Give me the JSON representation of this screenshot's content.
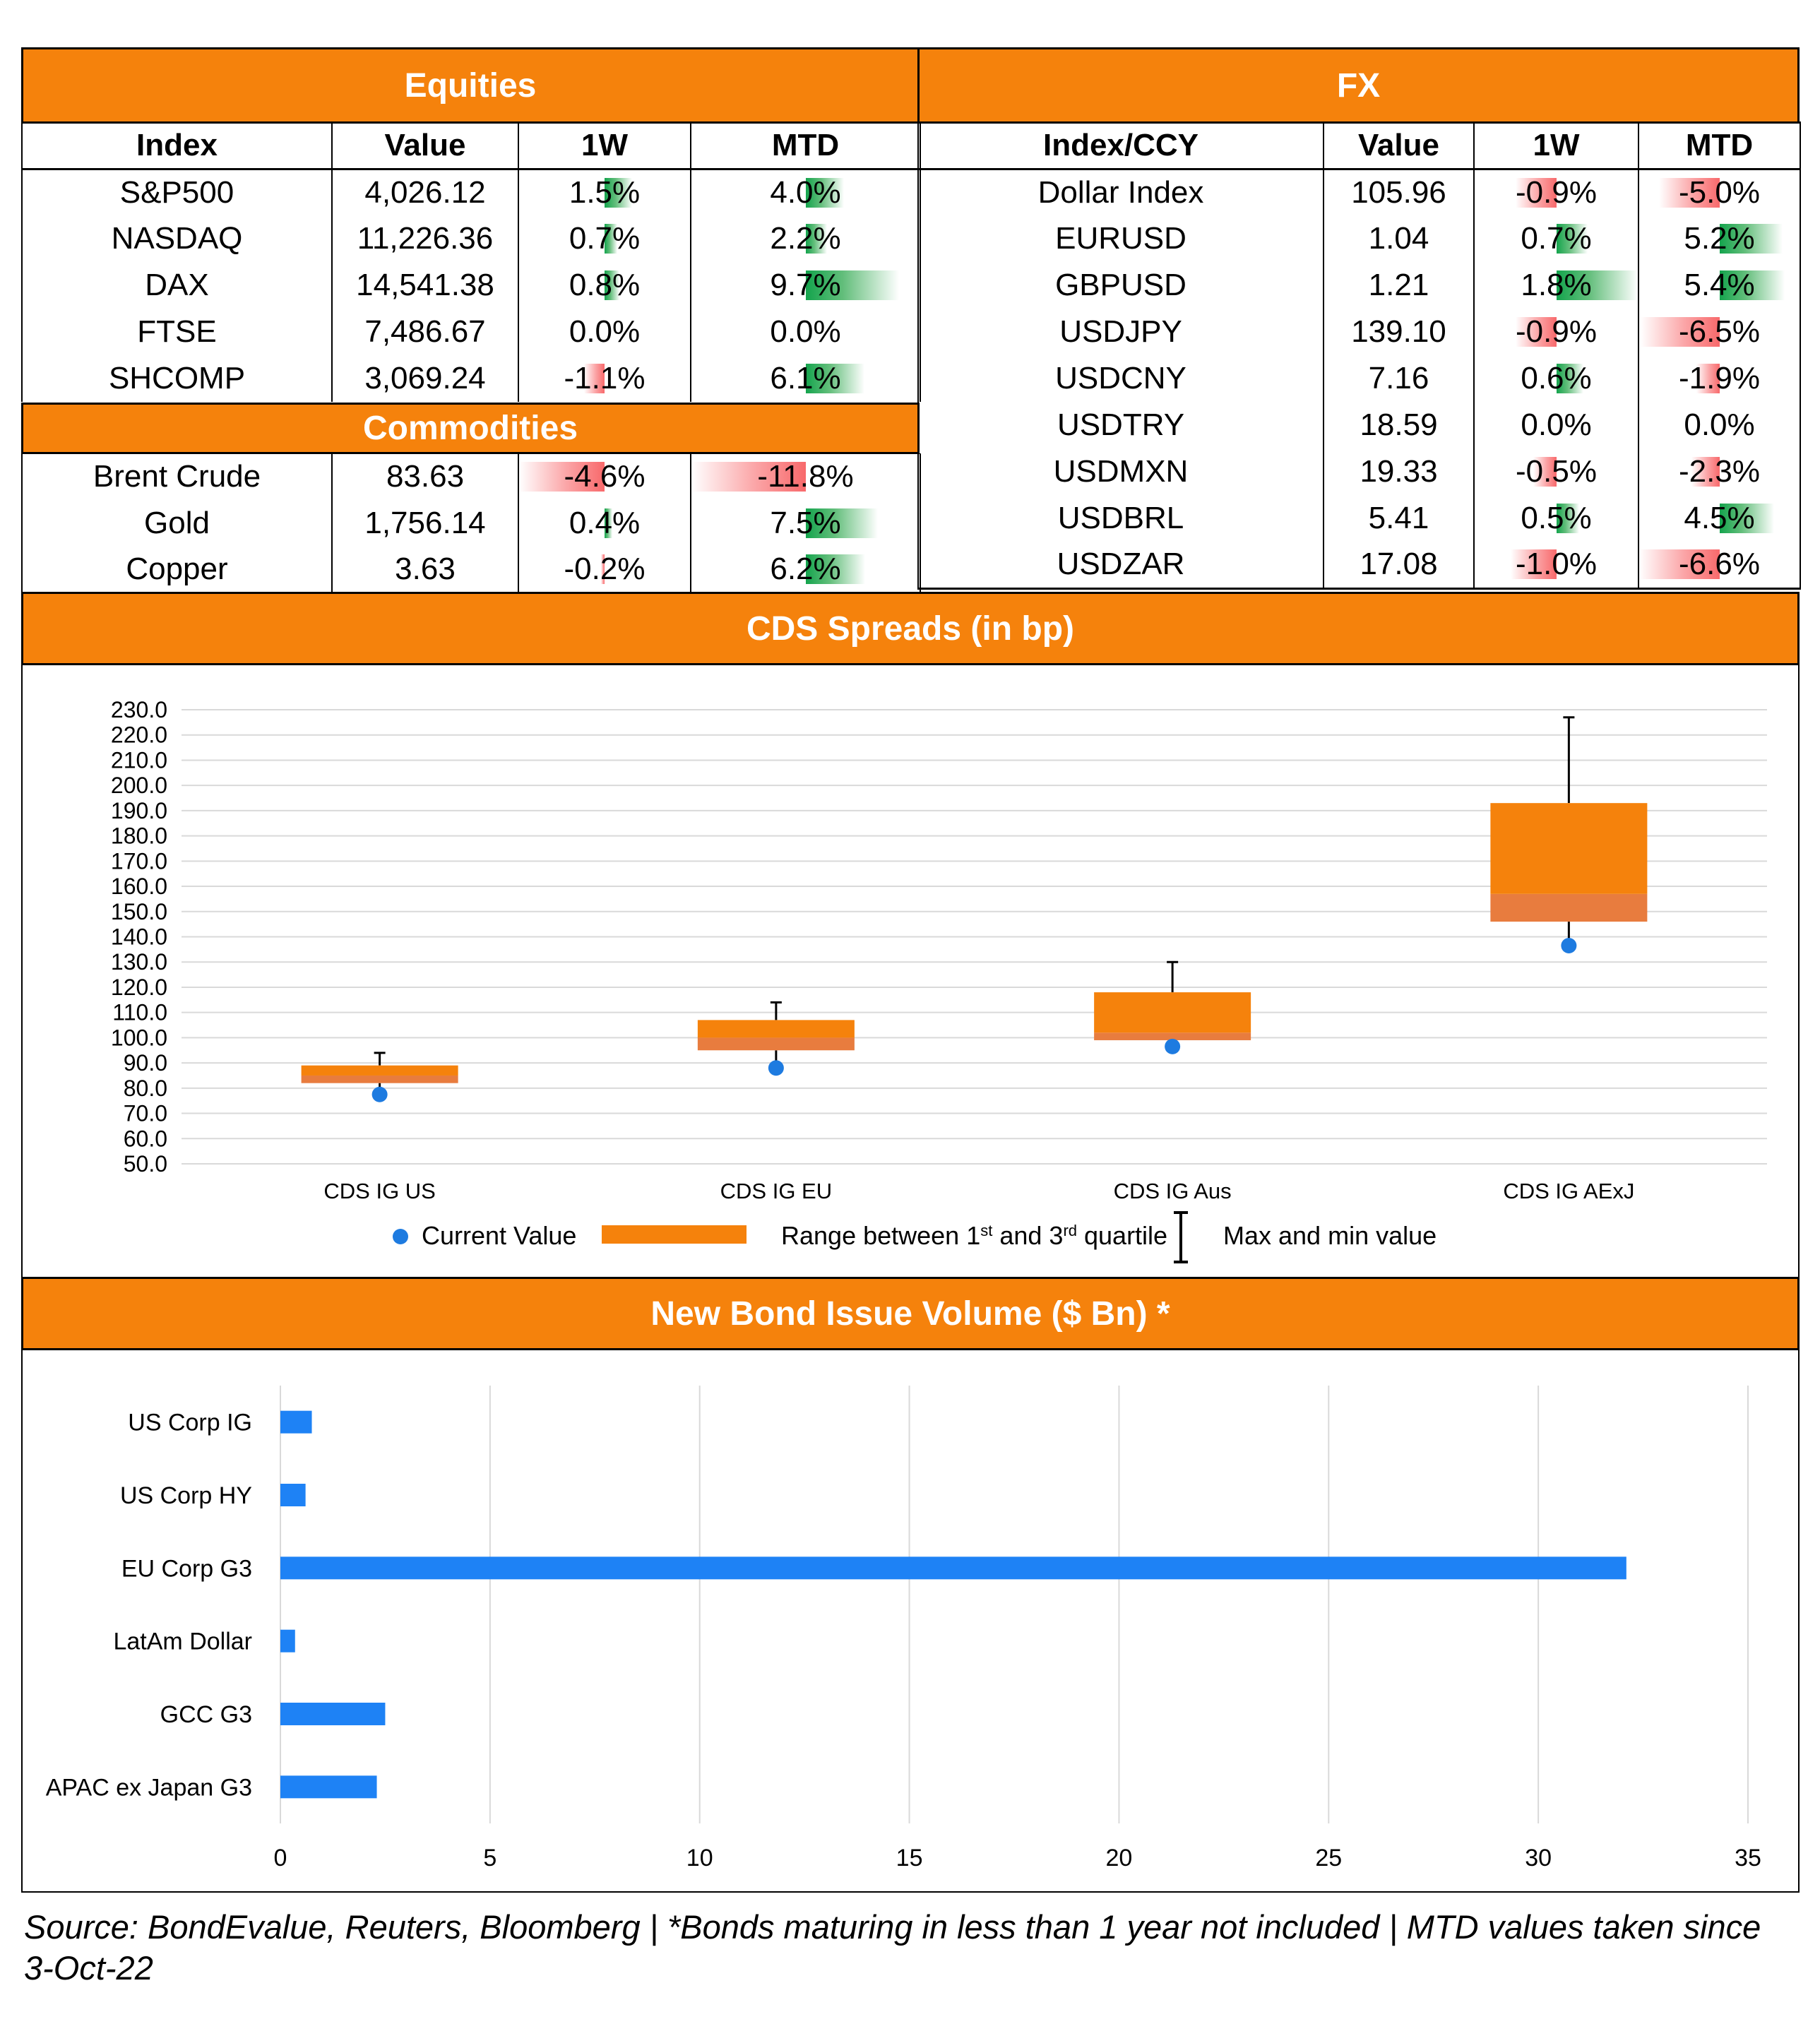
{
  "equities": {
    "title": "Equities",
    "headers": [
      "Index",
      "Value",
      "1W",
      "MTD"
    ],
    "rows": [
      {
        "index": "S&P500",
        "value": "4,026.12",
        "w1": "1.5%",
        "mtd": "4.0%",
        "w1_num": 1.5,
        "mtd_num": 4.0
      },
      {
        "index": "NASDAQ",
        "value": "11,226.36",
        "w1": "0.7%",
        "mtd": "2.2%",
        "w1_num": 0.7,
        "mtd_num": 2.2
      },
      {
        "index": "DAX",
        "value": "14,541.38",
        "w1": "0.8%",
        "mtd": "9.7%",
        "w1_num": 0.8,
        "mtd_num": 9.7
      },
      {
        "index": "FTSE",
        "value": "7,486.67",
        "w1": "0.0%",
        "mtd": "0.0%",
        "w1_num": 0.0,
        "mtd_num": 0.0
      },
      {
        "index": "SHCOMP",
        "value": "3,069.24",
        "w1": "-1.1%",
        "mtd": "6.1%",
        "w1_num": -1.1,
        "mtd_num": 6.1
      }
    ]
  },
  "commodities": {
    "title": "Commodities",
    "rows": [
      {
        "index": "Brent Crude",
        "value": "83.63",
        "w1": "-4.6%",
        "mtd": "-11.8%",
        "w1_num": -4.6,
        "mtd_num": -11.8
      },
      {
        "index": "Gold",
        "value": "1,756.14",
        "w1": "0.4%",
        "mtd": "7.5%",
        "w1_num": 0.4,
        "mtd_num": 7.5
      },
      {
        "index": "Copper",
        "value": "3.63",
        "w1": "-0.2%",
        "mtd": "6.2%",
        "w1_num": -0.2,
        "mtd_num": 6.2
      }
    ]
  },
  "fx": {
    "title": "FX",
    "headers": [
      "Index/CCY",
      "Value",
      "1W",
      "MTD"
    ],
    "rows": [
      {
        "index": "Dollar Index",
        "value": "105.96",
        "w1": "-0.9%",
        "mtd": "-5.0%",
        "w1_num": -0.9,
        "mtd_num": -5.0
      },
      {
        "index": "EURUSD",
        "value": "1.04",
        "w1": "0.7%",
        "mtd": "5.2%",
        "w1_num": 0.7,
        "mtd_num": 5.2
      },
      {
        "index": "GBPUSD",
        "value": "1.21",
        "w1": "1.8%",
        "mtd": "5.4%",
        "w1_num": 1.8,
        "mtd_num": 5.4
      },
      {
        "index": "USDJPY",
        "value": "139.10",
        "w1": "-0.9%",
        "mtd": "-6.5%",
        "w1_num": -0.9,
        "mtd_num": -6.5
      },
      {
        "index": "USDCNY",
        "value": "7.16",
        "w1": "0.6%",
        "mtd": "-1.9%",
        "w1_num": 0.6,
        "mtd_num": -1.9
      },
      {
        "index": "USDTRY",
        "value": "18.59",
        "w1": "0.0%",
        "mtd": "0.0%",
        "w1_num": 0.0,
        "mtd_num": 0.0
      },
      {
        "index": "USDMXN",
        "value": "19.33",
        "w1": "-0.5%",
        "mtd": "-2.3%",
        "w1_num": -0.5,
        "mtd_num": -2.3
      },
      {
        "index": "USDBRL",
        "value": "5.41",
        "w1": "0.5%",
        "mtd": "4.5%",
        "w1_num": 0.5,
        "mtd_num": 4.5
      },
      {
        "index": "USDZAR",
        "value": "17.08",
        "w1": "-1.0%",
        "mtd": "-6.6%",
        "w1_num": -1.0,
        "mtd_num": -6.6
      }
    ]
  },
  "colors": {
    "header_orange": "#F5820C",
    "box_orange": "#F5820C",
    "box_lower_orange": "#E87C3E",
    "dot_blue": "#1E7BE0",
    "bar_blue": "#1E82F5",
    "positive_green": "#14A44D",
    "negative_red": "#F8696B"
  },
  "cds": {
    "title": "CDS Spreads (in bp)",
    "legend": {
      "current": "Current Value",
      "range_prefix": "Range between 1",
      "range_sup1": "st",
      "range_mid": " and 3",
      "range_sup2": "rd",
      "range_suffix": " quartile",
      "maxmin": "Max and min value"
    }
  },
  "bonds": {
    "title": "New Bond Issue Volume ($ Bn) *"
  },
  "source": "Source: BondEvalue, Reuters, Bloomberg | *Bonds maturing in less than 1 year not included | MTD values taken since 3-Oct-22",
  "chart_data": [
    {
      "type": "box",
      "title": "CDS Spreads (in bp)",
      "categories": [
        "CDS IG US",
        "CDS IG EU",
        "CDS IG Aus",
        "CDS IG AExJ"
      ],
      "ylim": [
        50.0,
        230.0
      ],
      "yticks": [
        "230.0",
        "220.0",
        "210.0",
        "200.0",
        "190.0",
        "180.0",
        "170.0",
        "160.0",
        "150.0",
        "140.0",
        "130.0",
        "120.0",
        "110.0",
        "100.0",
        "90.0",
        "80.0",
        "70.0",
        "60.0",
        "50.0"
      ],
      "q1": [
        82,
        95,
        99,
        146
      ],
      "median": [
        85,
        100,
        102,
        157
      ],
      "q3": [
        89,
        107,
        118,
        193
      ],
      "max": [
        94,
        114,
        130,
        227
      ],
      "min": [
        82,
        95,
        99,
        146
      ],
      "current": [
        77.5,
        88,
        96.5,
        136.5
      ],
      "grid": true,
      "legend_position": "bottom"
    },
    {
      "type": "bar",
      "orientation": "horizontal",
      "title": "New Bond Issue Volume ($ Bn) *",
      "categories": [
        "US Corp IG",
        "US Corp HY",
        "EU Corp G3",
        "LatAm Dollar",
        "GCC G3",
        "APAC ex Japan G3"
      ],
      "values": [
        0.75,
        0.6,
        32.1,
        0.35,
        2.5,
        2.3
      ],
      "xlim": [
        0,
        35
      ],
      "xticks": [
        "0",
        "5",
        "10",
        "15",
        "20",
        "25",
        "30",
        "35"
      ],
      "grid": true
    }
  ]
}
